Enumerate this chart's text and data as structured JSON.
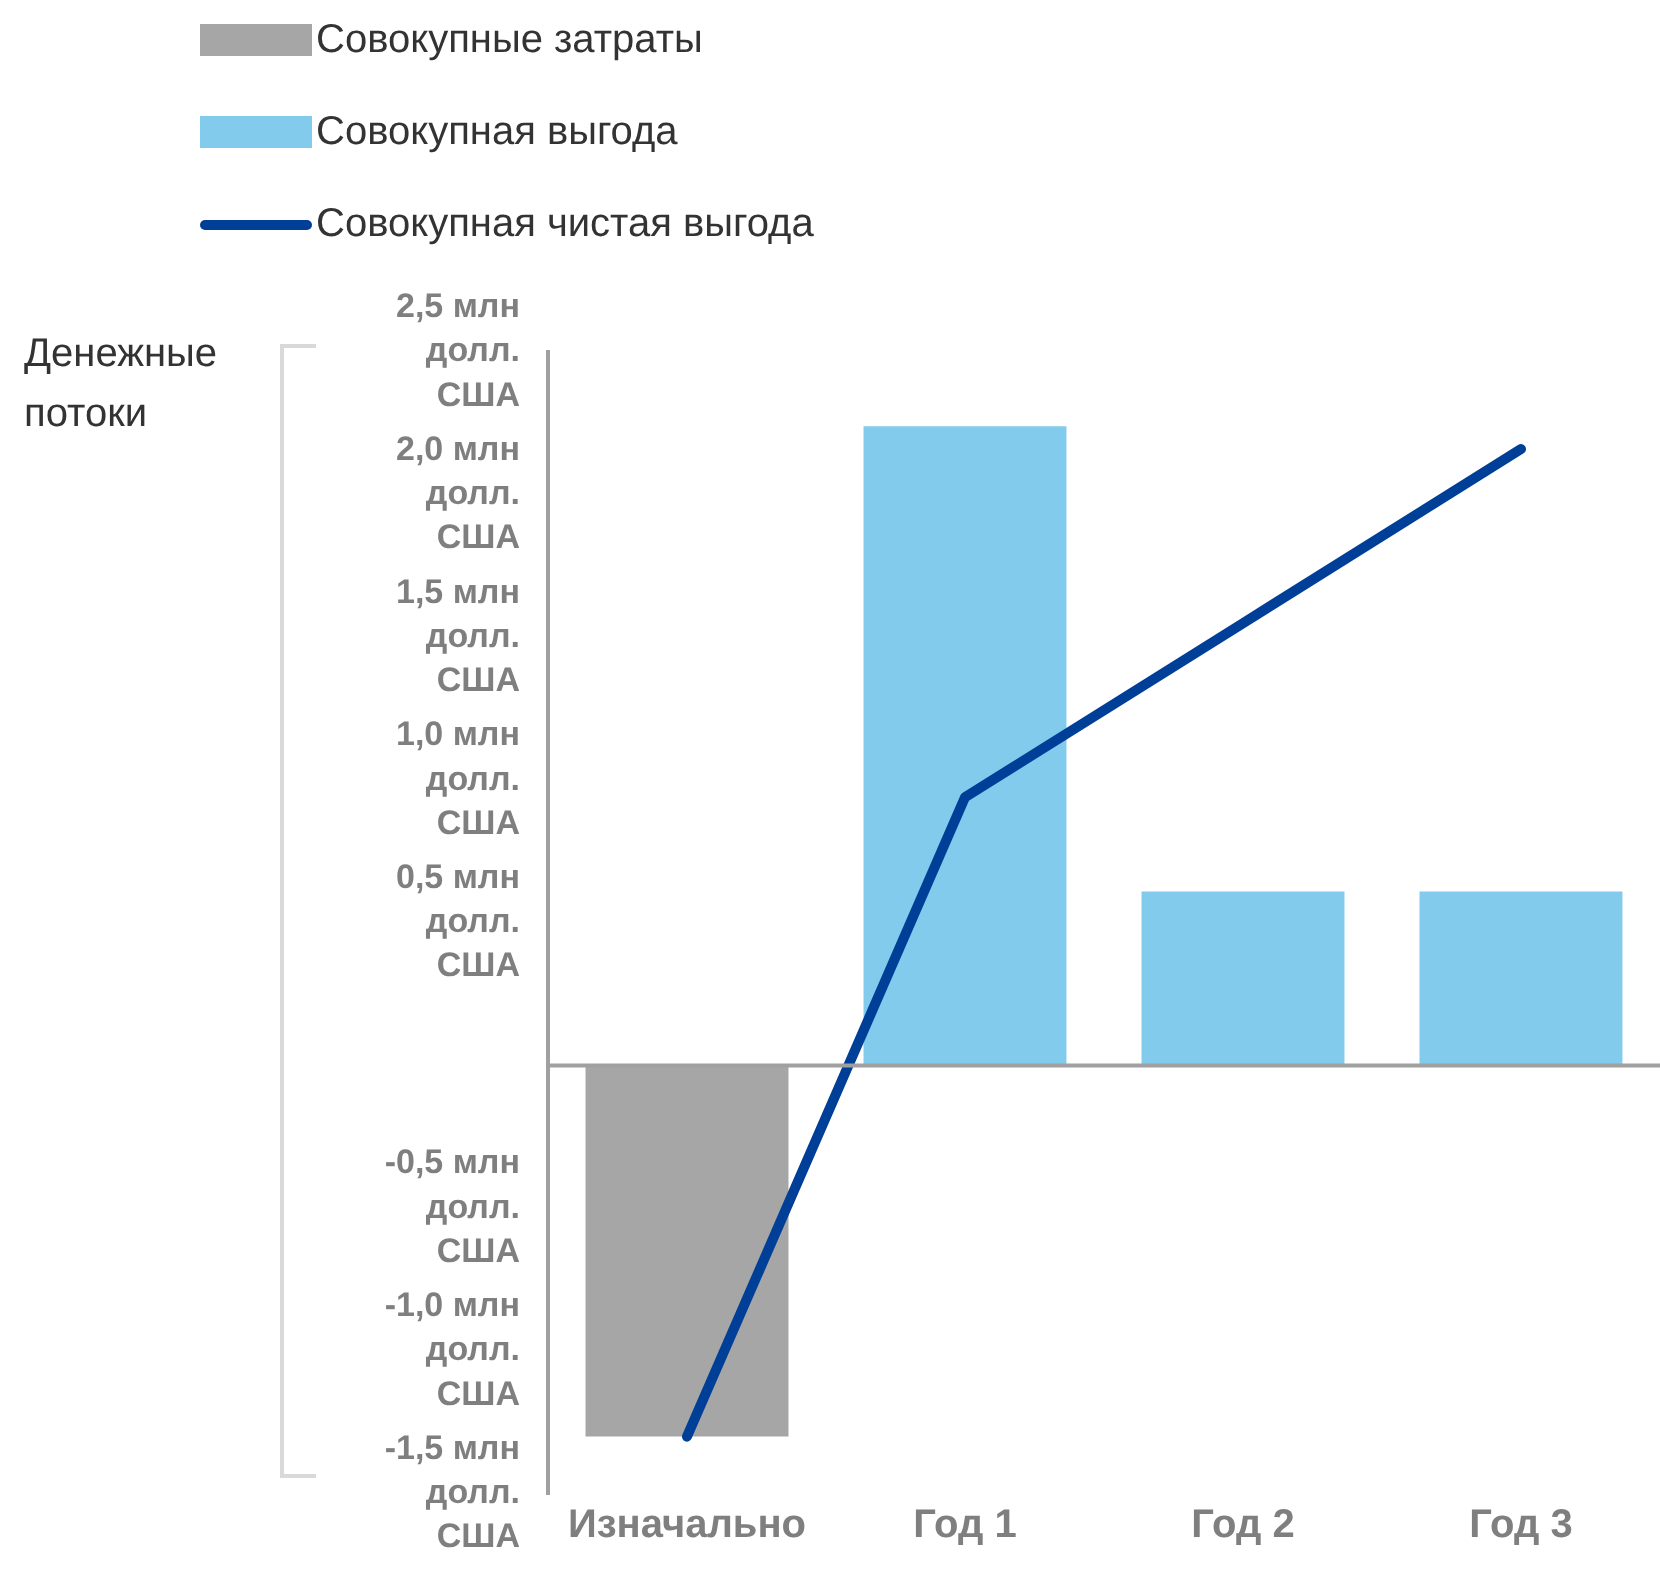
{
  "chart_data": {
    "type": "bar",
    "ylabel": "Денежные потоки",
    "stacked": true,
    "legend": "top left",
    "marker": "none",
    "line_style": "solid",
    "grid": false,
    "categories": [
      "Изначально",
      "Год 1",
      "Год 2",
      "Год 3"
    ],
    "series": [
      {
        "name": "Совокупные затраты",
        "color": "#a6a6a6",
        "values": [
          -1.3,
          null,
          null,
          null
        ]
      },
      {
        "name": "Совокупная выгода",
        "color": "#82cbec",
        "values": [
          null,
          2.24,
          0.61,
          0.61
        ]
      },
      {
        "name": "Совокупная чистая выгода",
        "type": "line",
        "color": "#003f98",
        "values": [
          -1.3,
          0.94,
          1.55,
          2.16
        ]
      }
    ],
    "ylim": [
      -1.5,
      2.5
    ],
    "yticks": [
      {
        "value": -1.5,
        "label": "-1,5 млн долл. США"
      },
      {
        "value": -1.0,
        "label": "-1,0 млн долл. США"
      },
      {
        "value": -0.5,
        "label": "-0,5 млн долл. США"
      },
      {
        "value": 0.5,
        "label": "0,5 млн долл. США"
      },
      {
        "value": 1.0,
        "label": "1,0 млн долл. США"
      },
      {
        "value": 1.5,
        "label": "1,5 млн долл. США"
      },
      {
        "value": 2.0,
        "label": "2,0 млн долл. США"
      },
      {
        "value": 2.5,
        "label": "2,5 млн долл. США"
      }
    ]
  }
}
